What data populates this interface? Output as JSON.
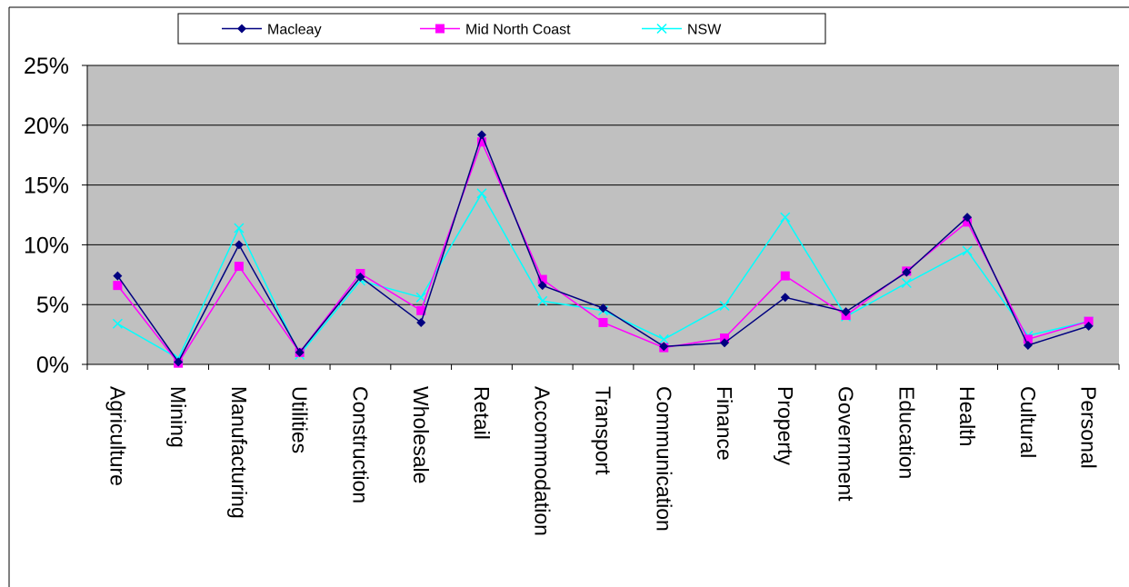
{
  "chart_data": {
    "type": "line",
    "categories": [
      "Agriculture",
      "Mining",
      "Manufacturing",
      "Utilities",
      "Construction",
      "Wholesale",
      "Retail",
      "Accommodation",
      "Transport",
      "Communication",
      "Finance",
      "Property",
      "Government",
      "Education",
      "Health",
      "Cultural",
      "Personal"
    ],
    "series": [
      {
        "name": "Macleay",
        "color": "#000080",
        "marker": "diamond",
        "values": [
          7.4,
          0.2,
          10.0,
          1.0,
          7.3,
          3.5,
          19.2,
          6.6,
          4.7,
          1.5,
          1.8,
          5.6,
          4.4,
          7.7,
          12.3,
          1.6,
          3.2
        ]
      },
      {
        "name": "Mid North Coast",
        "color": "#ff00ff",
        "marker": "square",
        "values": [
          6.6,
          0.1,
          8.2,
          1.0,
          7.6,
          4.5,
          18.6,
          7.1,
          3.5,
          1.4,
          2.2,
          7.4,
          4.1,
          7.8,
          11.9,
          2.1,
          3.6
        ]
      },
      {
        "name": "NSW",
        "color": "#00ffff",
        "marker": "x",
        "values": [
          3.4,
          0.5,
          11.4,
          0.8,
          7.0,
          5.6,
          14.3,
          5.3,
          4.5,
          2.1,
          4.9,
          12.3,
          4.0,
          6.8,
          9.5,
          2.4,
          3.6
        ]
      }
    ],
    "y_ticks": [
      "0%",
      "5%",
      "10%",
      "15%",
      "20%",
      "25%"
    ],
    "ylim": [
      0,
      25
    ],
    "grid": true,
    "plot_background": "#c0c0c0",
    "legend_position": "top"
  }
}
